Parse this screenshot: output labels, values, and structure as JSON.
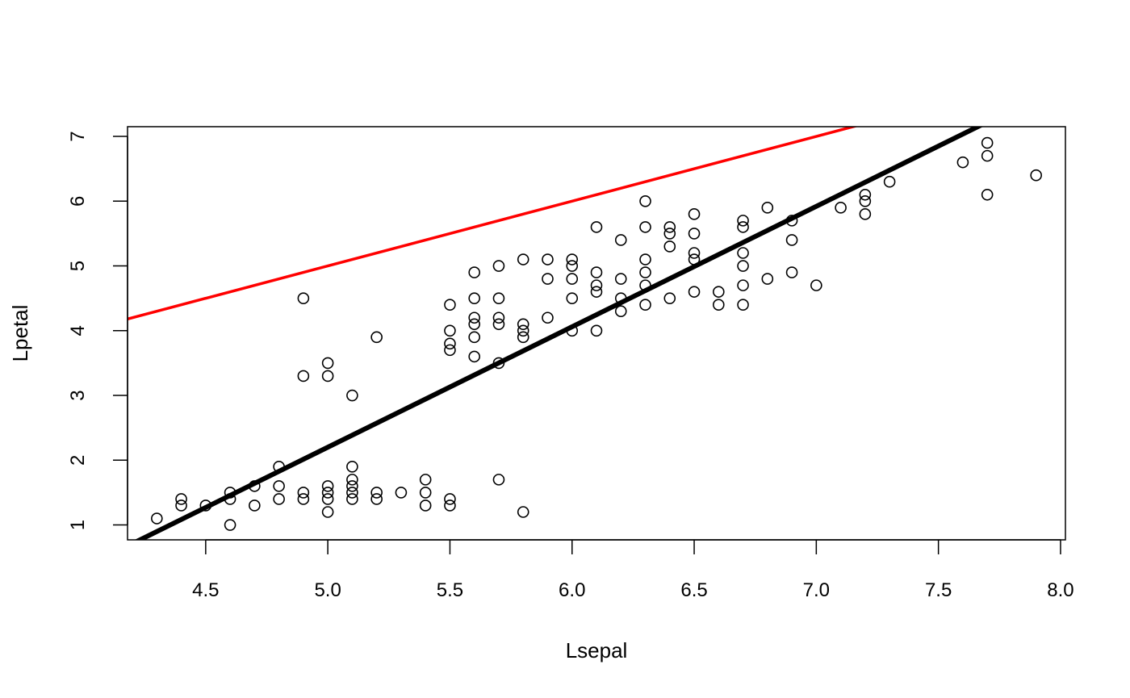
{
  "chart_data": {
    "type": "scatter",
    "title": "",
    "xlabel": "Lsepal",
    "ylabel": "Lpetal",
    "xlim": [
      4.18,
      8.02
    ],
    "ylim": [
      0.77,
      7.15
    ],
    "xticks": [
      "4.5",
      "5.0",
      "5.5",
      "6.0",
      "6.5",
      "7.0",
      "7.5",
      "8.0"
    ],
    "yticks": [
      "1",
      "2",
      "3",
      "4",
      "5",
      "6",
      "7"
    ],
    "grid": false,
    "points": [
      [
        4.3,
        1.1
      ],
      [
        4.4,
        1.3
      ],
      [
        4.4,
        1.4
      ],
      [
        4.5,
        1.3
      ],
      [
        4.6,
        1.0
      ],
      [
        4.6,
        1.4
      ],
      [
        4.6,
        1.5
      ],
      [
        4.7,
        1.3
      ],
      [
        4.7,
        1.6
      ],
      [
        4.8,
        1.4
      ],
      [
        4.8,
        1.6
      ],
      [
        4.8,
        1.9
      ],
      [
        4.9,
        1.4
      ],
      [
        4.9,
        1.5
      ],
      [
        4.9,
        3.3
      ],
      [
        4.9,
        4.5
      ],
      [
        5.0,
        1.2
      ],
      [
        5.0,
        1.4
      ],
      [
        5.0,
        1.5
      ],
      [
        5.0,
        1.6
      ],
      [
        5.0,
        3.3
      ],
      [
        5.0,
        3.5
      ],
      [
        5.1,
        1.4
      ],
      [
        5.1,
        1.5
      ],
      [
        5.1,
        1.6
      ],
      [
        5.1,
        1.7
      ],
      [
        5.1,
        1.9
      ],
      [
        5.1,
        3.0
      ],
      [
        5.2,
        1.4
      ],
      [
        5.2,
        1.5
      ],
      [
        5.2,
        3.9
      ],
      [
        5.3,
        1.5
      ],
      [
        5.4,
        1.3
      ],
      [
        5.4,
        1.5
      ],
      [
        5.4,
        1.7
      ],
      [
        5.5,
        1.3
      ],
      [
        5.5,
        1.4
      ],
      [
        5.5,
        3.7
      ],
      [
        5.5,
        3.8
      ],
      [
        5.5,
        4.0
      ],
      [
        5.5,
        4.4
      ],
      [
        5.6,
        3.6
      ],
      [
        5.6,
        3.9
      ],
      [
        5.6,
        4.1
      ],
      [
        5.6,
        4.2
      ],
      [
        5.6,
        4.5
      ],
      [
        5.6,
        4.9
      ],
      [
        5.7,
        1.7
      ],
      [
        5.7,
        3.5
      ],
      [
        5.7,
        4.1
      ],
      [
        5.7,
        4.2
      ],
      [
        5.7,
        4.5
      ],
      [
        5.7,
        5.0
      ],
      [
        5.8,
        1.2
      ],
      [
        5.8,
        3.9
      ],
      [
        5.8,
        4.0
      ],
      [
        5.8,
        4.1
      ],
      [
        5.8,
        5.1
      ],
      [
        5.9,
        4.2
      ],
      [
        5.9,
        4.8
      ],
      [
        5.9,
        5.1
      ],
      [
        6.0,
        4.0
      ],
      [
        6.0,
        4.5
      ],
      [
        6.0,
        4.8
      ],
      [
        6.0,
        5.0
      ],
      [
        6.0,
        5.1
      ],
      [
        6.1,
        4.0
      ],
      [
        6.1,
        4.6
      ],
      [
        6.1,
        4.7
      ],
      [
        6.1,
        4.9
      ],
      [
        6.1,
        5.6
      ],
      [
        6.2,
        4.3
      ],
      [
        6.2,
        4.5
      ],
      [
        6.2,
        4.8
      ],
      [
        6.2,
        5.4
      ],
      [
        6.3,
        4.4
      ],
      [
        6.3,
        4.7
      ],
      [
        6.3,
        4.9
      ],
      [
        6.3,
        5.1
      ],
      [
        6.3,
        5.6
      ],
      [
        6.3,
        6.0
      ],
      [
        6.4,
        4.5
      ],
      [
        6.4,
        5.3
      ],
      [
        6.4,
        5.5
      ],
      [
        6.4,
        5.6
      ],
      [
        6.5,
        4.6
      ],
      [
        6.5,
        5.1
      ],
      [
        6.5,
        5.2
      ],
      [
        6.5,
        5.5
      ],
      [
        6.5,
        5.8
      ],
      [
        6.6,
        4.4
      ],
      [
        6.6,
        4.6
      ],
      [
        6.7,
        4.4
      ],
      [
        6.7,
        4.7
      ],
      [
        6.7,
        5.0
      ],
      [
        6.7,
        5.2
      ],
      [
        6.7,
        5.6
      ],
      [
        6.7,
        5.7
      ],
      [
        6.8,
        4.8
      ],
      [
        6.8,
        5.9
      ],
      [
        6.9,
        4.9
      ],
      [
        6.9,
        5.4
      ],
      [
        6.9,
        5.7
      ],
      [
        7.0,
        4.7
      ],
      [
        7.1,
        5.9
      ],
      [
        7.2,
        5.8
      ],
      [
        7.2,
        6.0
      ],
      [
        7.2,
        6.1
      ],
      [
        7.3,
        6.3
      ],
      [
        7.6,
        6.6
      ],
      [
        7.7,
        6.1
      ],
      [
        7.7,
        6.7
      ],
      [
        7.7,
        6.9
      ],
      [
        7.9,
        6.4
      ]
    ],
    "lines": [
      {
        "intercept": 0,
        "slope": 1,
        "color": "#ff0000"
      },
      {
        "intercept": -7.1,
        "slope": 1.86,
        "color": "#000000"
      }
    ]
  }
}
